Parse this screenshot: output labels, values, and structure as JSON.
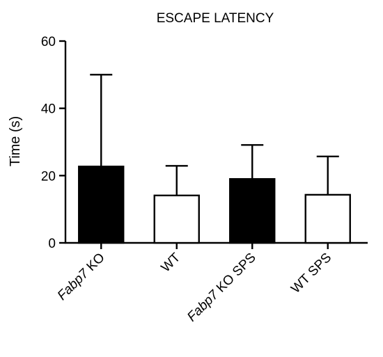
{
  "chart_data": {
    "type": "bar",
    "title": "ESCAPE LATENCY",
    "xlabel": "",
    "ylabel": "Time (s)",
    "ylim": [
      0,
      60
    ],
    "yticks": [
      0,
      20,
      40,
      60
    ],
    "grid": false,
    "categories": [
      {
        "label": "KO",
        "italic_prefix": "Fabp7",
        "value": 22.7,
        "error": 27.3,
        "fill": "#000000"
      },
      {
        "label": "WT",
        "italic_prefix": "",
        "value": 14.1,
        "error": 8.8,
        "fill": "#ffffff"
      },
      {
        "label": "KO SPS",
        "italic_prefix": "Fabp7",
        "value": 19.0,
        "error": 10.1,
        "fill": "#000000"
      },
      {
        "label": "WT SPS",
        "italic_prefix": "",
        "value": 14.3,
        "error": 11.4,
        "fill": "#ffffff"
      }
    ]
  }
}
